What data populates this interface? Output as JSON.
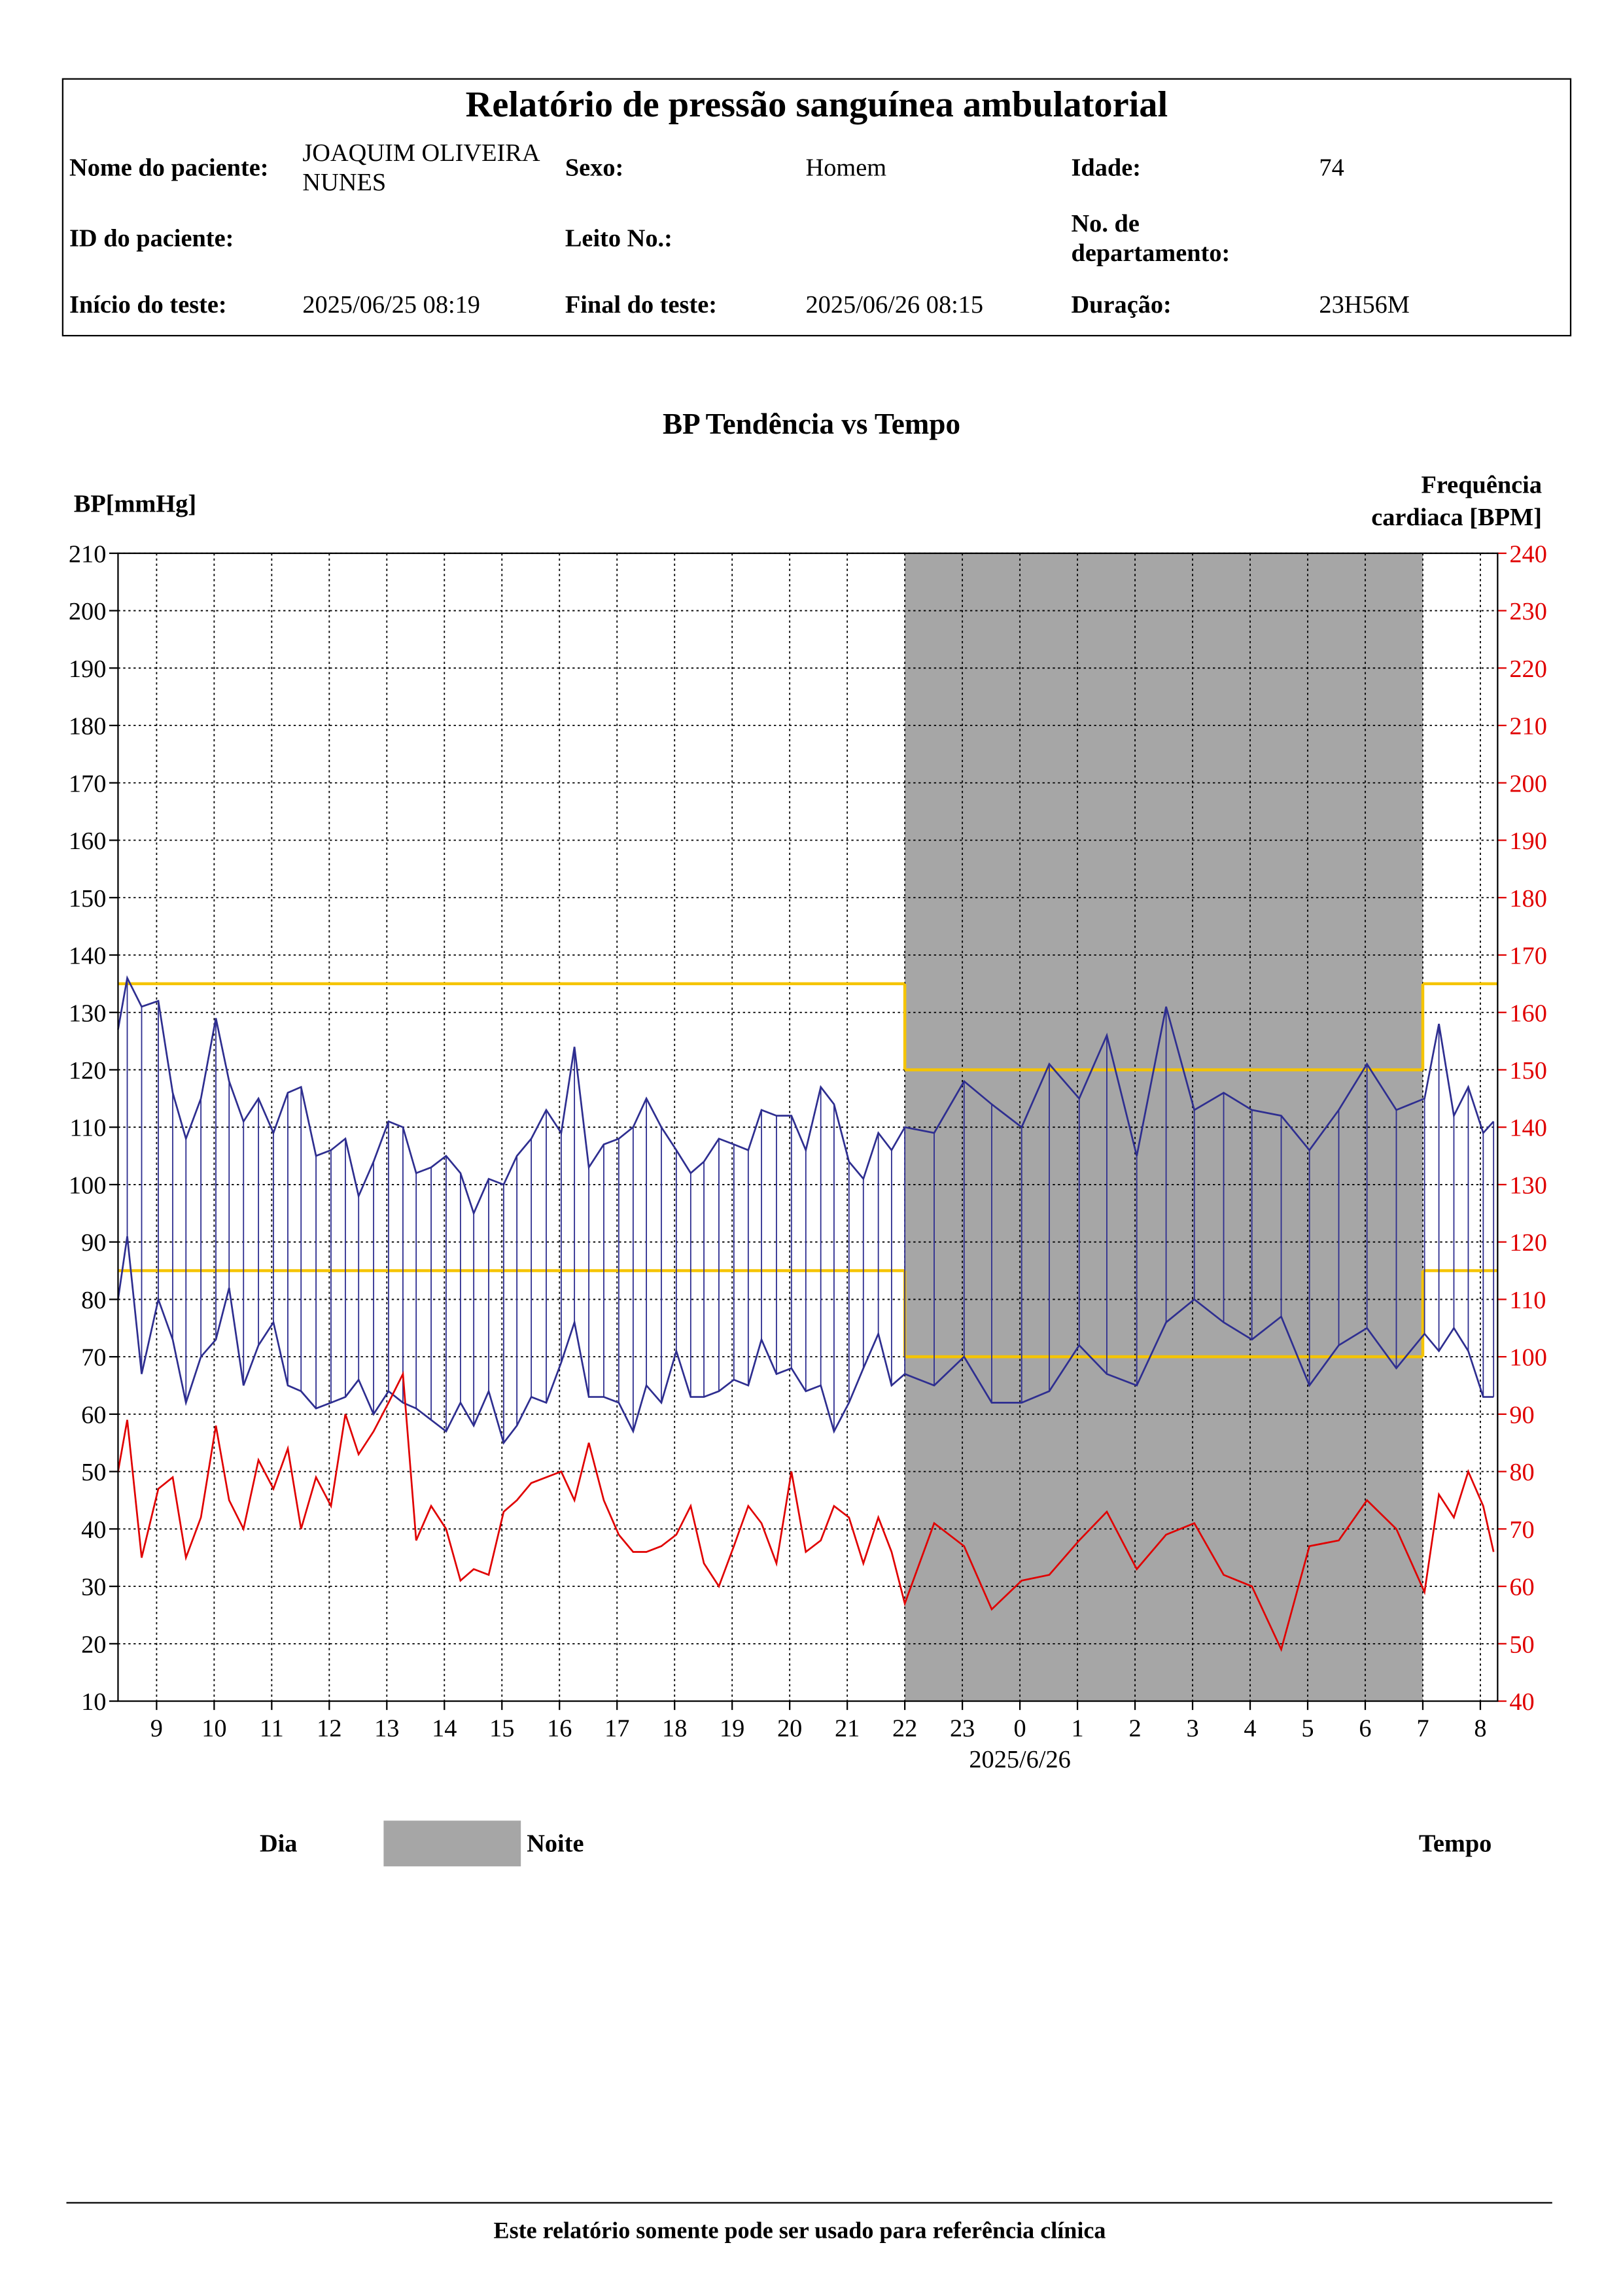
{
  "header": {
    "title": "Relatório de pressão sanguínea ambulatorial",
    "fields": [
      [
        {
          "label": "Nome do paciente:",
          "value": "JOAQUIM OLIVEIRA NUNES"
        },
        {
          "label": "Sexo:",
          "value": "Homem"
        },
        {
          "label": "Idade:",
          "value": "74"
        }
      ],
      [
        {
          "label": "ID do paciente:"
        },
        {
          "label": "Leito No.:"
        },
        {
          "label": "No. de departamento:"
        }
      ],
      [
        {
          "label": "Início do teste:",
          "value": "2025/06/25 08:19"
        },
        {
          "label": "Final do teste:",
          "value": "2025/06/26 08:15"
        },
        {
          "label": "Duração:",
          "value": "23H56M"
        }
      ]
    ]
  },
  "chart_data": {
    "type": "line",
    "title": "BP Tendência vs Tempo",
    "y_label": "BP[mmHg]",
    "y2_label": [
      "Frequência",
      "cardiaca [BPM]"
    ],
    "x_label": "Tempo",
    "date_label": "2025/6/26",
    "legend": [
      {
        "label": "Dia",
        "color": "#ffffff"
      },
      {
        "label": "Noite",
        "color": "#a6a6a6"
      }
    ],
    "night_band": [
      22,
      31
    ],
    "limits": {
      "color": "#f5c400",
      "day": [
        85,
        135
      ],
      "night": [
        70,
        120
      ]
    },
    "xlim": [
      8.33,
      32.3
    ],
    "xticks": [
      9,
      10,
      11,
      12,
      13,
      14,
      15,
      16,
      17,
      18,
      19,
      20,
      21,
      22,
      23,
      {
        "value": 24,
        "label": "0"
      },
      {
        "value": 25,
        "label": "1"
      },
      {
        "value": 26,
        "label": "2"
      },
      {
        "value": 27,
        "label": "3"
      },
      {
        "value": 28,
        "label": "4"
      },
      {
        "value": 29,
        "label": "5"
      },
      {
        "value": 30,
        "label": "6"
      },
      {
        "value": 31,
        "label": "7"
      },
      {
        "value": 32,
        "label": "8"
      }
    ],
    "ylim": [
      10,
      210
    ],
    "yticks": [
      10,
      20,
      30,
      40,
      50,
      60,
      70,
      80,
      90,
      100,
      110,
      120,
      130,
      140,
      150,
      160,
      170,
      180,
      190,
      200,
      210
    ],
    "y2lim": [
      40,
      240
    ],
    "y2ticks": [
      40,
      50,
      60,
      70,
      80,
      90,
      100,
      110,
      120,
      130,
      140,
      150,
      160,
      170,
      180,
      190,
      200,
      210,
      220,
      230,
      240
    ],
    "grid": true,
    "x": [
      8.33,
      8.49,
      8.74,
      9.03,
      9.28,
      9.51,
      9.77,
      10.03,
      10.26,
      10.51,
      10.77,
      11.03,
      11.28,
      11.51,
      11.77,
      12.03,
      12.28,
      12.51,
      12.77,
      13.03,
      13.28,
      13.51,
      13.77,
      14.03,
      14.28,
      14.51,
      14.77,
      15.03,
      15.26,
      15.51,
      15.77,
      16.03,
      16.26,
      16.51,
      16.77,
      17.03,
      17.28,
      17.51,
      17.77,
      18.03,
      18.28,
      18.51,
      18.77,
      19.03,
      19.28,
      19.51,
      19.77,
      20.03,
      20.28,
      20.54,
      20.77,
      21.03,
      21.28,
      21.54,
      21.77,
      22.0,
      22.51,
      23.03,
      23.51,
      24.03,
      24.51,
      25.03,
      25.51,
      26.03,
      26.54,
      27.03,
      27.54,
      28.03,
      28.54,
      29.03,
      29.54,
      30.03,
      30.54,
      31.03,
      31.28,
      31.54,
      31.79,
      32.05,
      32.23
    ],
    "series": [
      {
        "color": "#2e2e90",
        "values": [
          127,
          136,
          131,
          132,
          116,
          108,
          115,
          129,
          118,
          111,
          115,
          109,
          116,
          117,
          105,
          106,
          108,
          98,
          104,
          111,
          110,
          102,
          103,
          105,
          102,
          95,
          101,
          100,
          105,
          108,
          113,
          109,
          124,
          103,
          107,
          108,
          110,
          115,
          110,
          106,
          102,
          104,
          108,
          107,
          106,
          113,
          112,
          112,
          106,
          117,
          114,
          104,
          101,
          109,
          106,
          110,
          109,
          118,
          114,
          110,
          121,
          115,
          126,
          105,
          131,
          113,
          116,
          113,
          112,
          106,
          113,
          121,
          113,
          115,
          128,
          112,
          117,
          109,
          111
        ]
      },
      {
        "color": "#2e2e90",
        "values": [
          80,
          91,
          67,
          80,
          73,
          62,
          70,
          73,
          82,
          65,
          72,
          76,
          65,
          64,
          61,
          62,
          63,
          66,
          60,
          64,
          62,
          61,
          59,
          57,
          62,
          58,
          64,
          55,
          58,
          63,
          62,
          69,
          76,
          63,
          63,
          62,
          57,
          65,
          62,
          71,
          63,
          63,
          64,
          66,
          65,
          73,
          67,
          68,
          64,
          65,
          57,
          62,
          68,
          74,
          65,
          67,
          65,
          70,
          62,
          62,
          64,
          72,
          67,
          65,
          76,
          80,
          76,
          73,
          77,
          65,
          72,
          75,
          68,
          74,
          71,
          75,
          71,
          63,
          63
        ]
      },
      {
        "color": "#e00000",
        "axis": "y2",
        "values": [
          80,
          89,
          65,
          77,
          79,
          65,
          72,
          88,
          75,
          70,
          82,
          77,
          84,
          70,
          79,
          74,
          90,
          83,
          87,
          92,
          97,
          68,
          74,
          70,
          61,
          63,
          62,
          73,
          75,
          78,
          79,
          80,
          75,
          85,
          75,
          69,
          66,
          66,
          67,
          69,
          74,
          64,
          60,
          67,
          74,
          71,
          64,
          80,
          66,
          68,
          74,
          72,
          64,
          72,
          66,
          57,
          71,
          67,
          56,
          61,
          62,
          68,
          73,
          63,
          69,
          71,
          62,
          60,
          49,
          67,
          68,
          75,
          70,
          59,
          76,
          72,
          80,
          74,
          66
        ]
      }
    ]
  },
  "footer": "Este relatório somente pode ser usado para referência clínica"
}
